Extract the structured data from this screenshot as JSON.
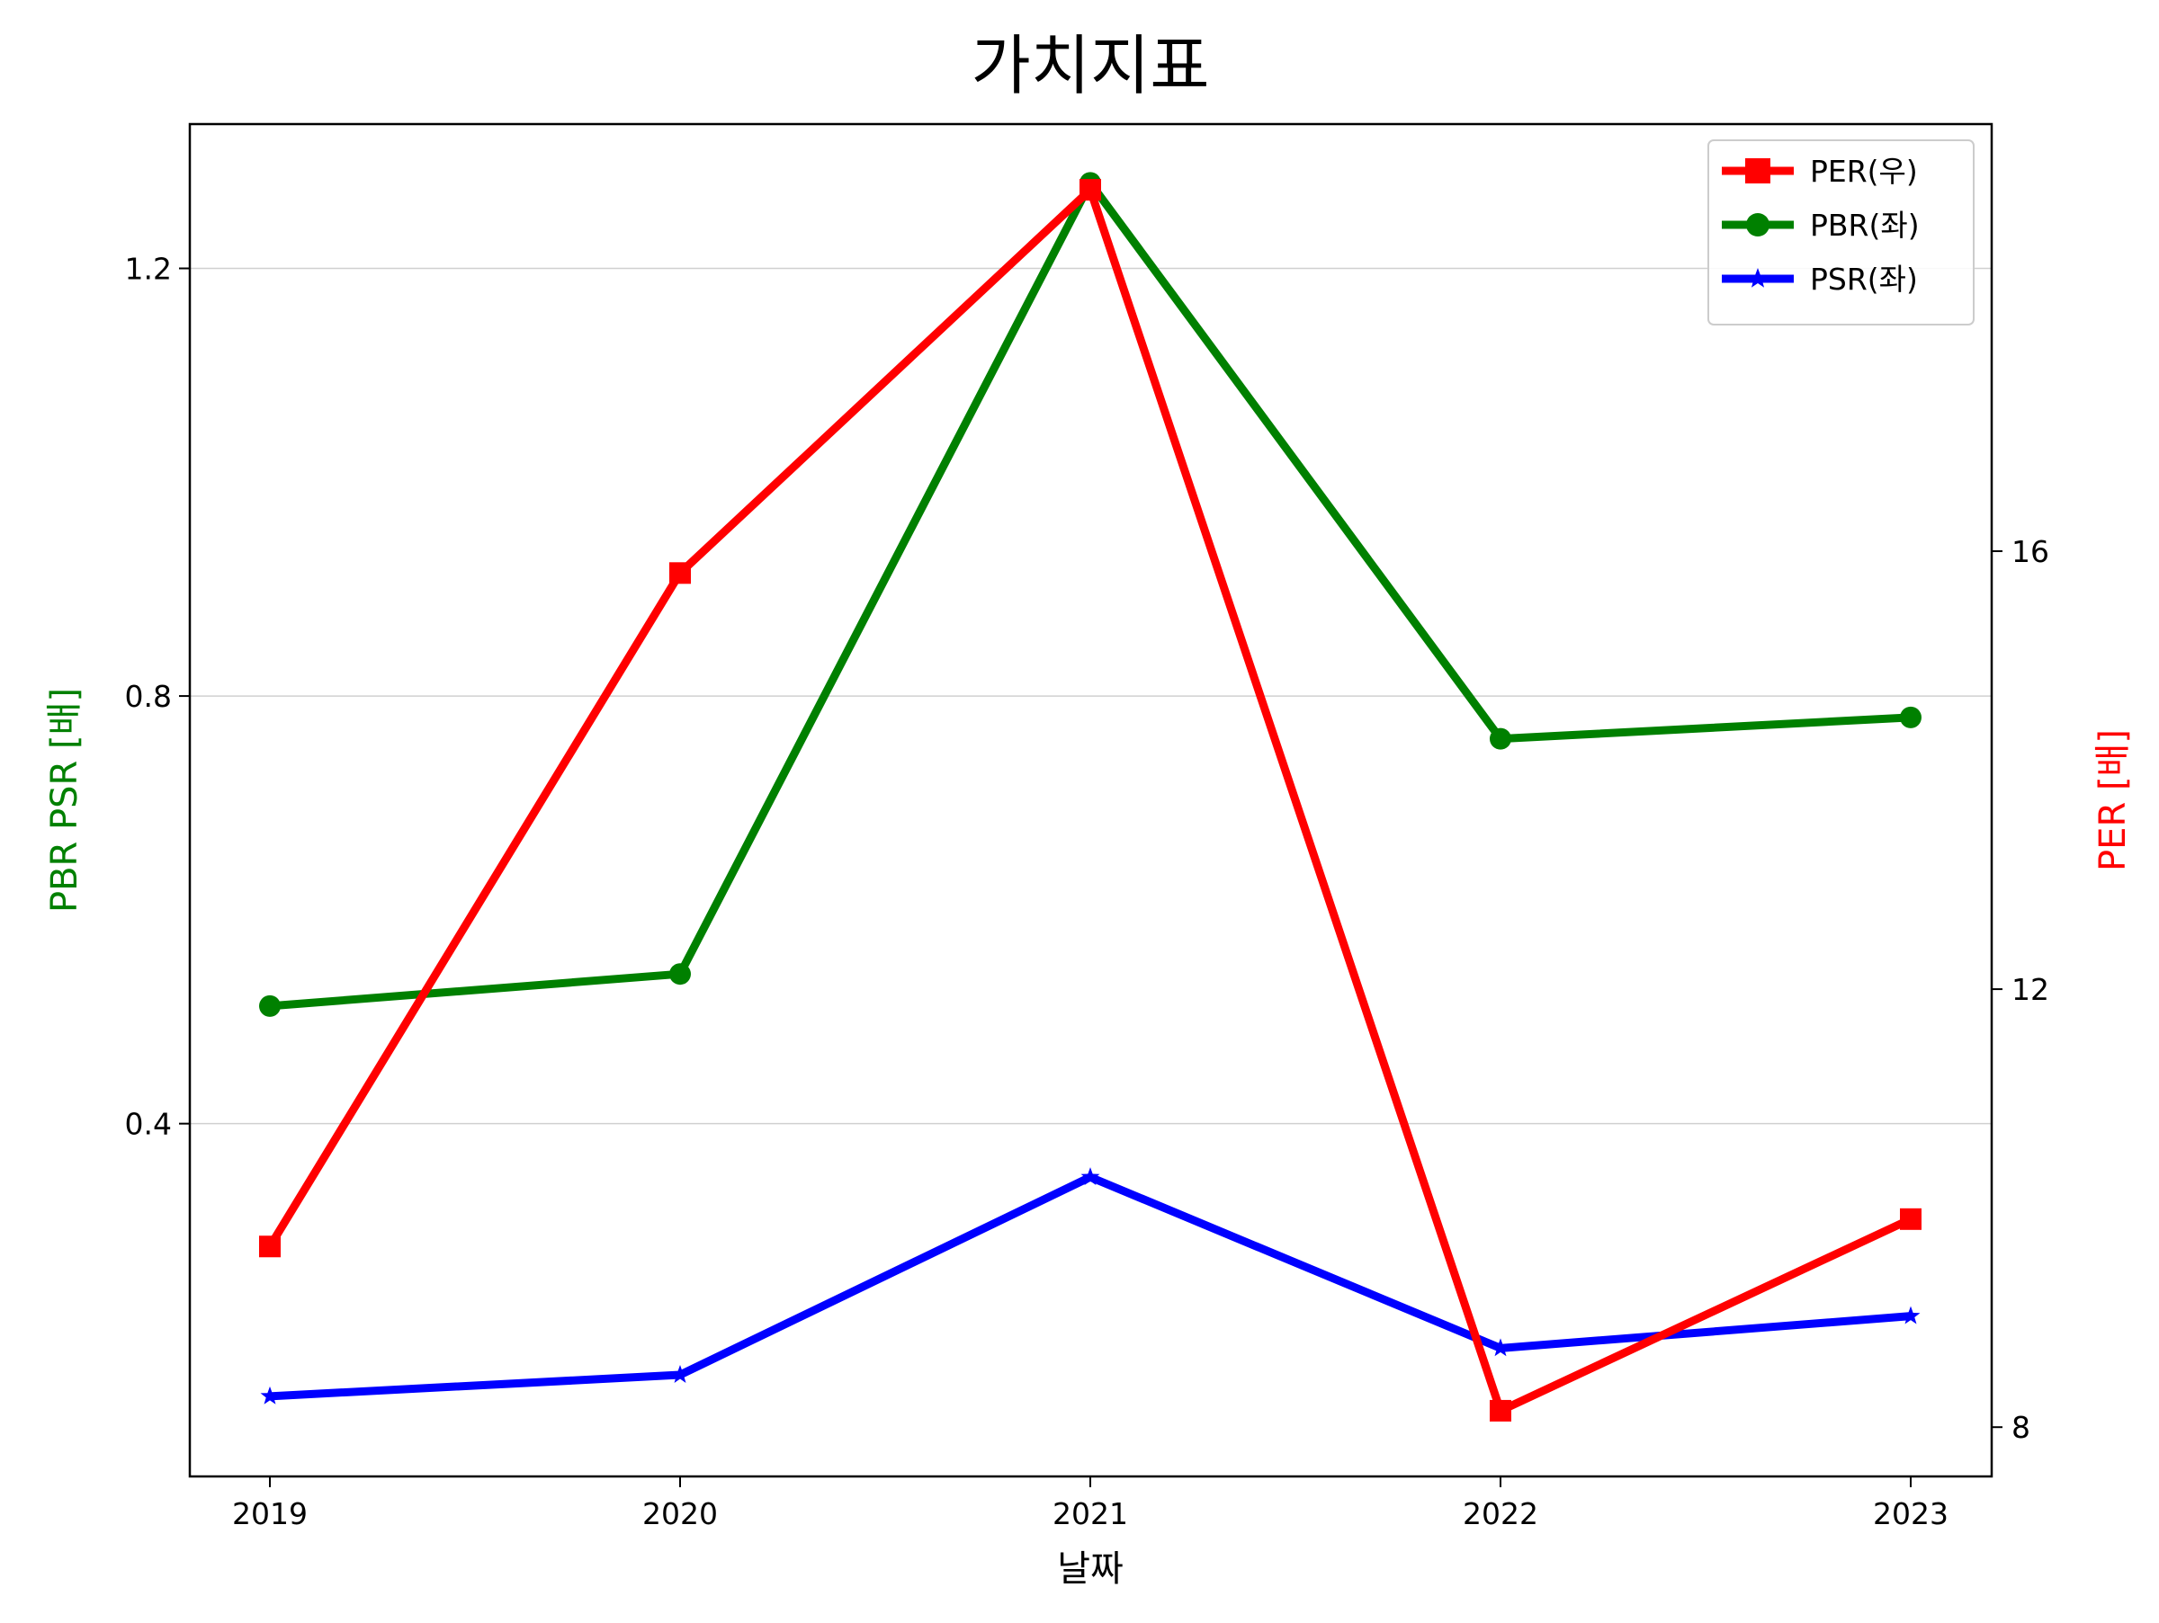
{
  "chart_data": {
    "type": "line",
    "title": "가치지표",
    "xlabel": "날짜",
    "ylabel_left": "PBR PSR [배]",
    "ylabel_right": "PER [배]",
    "categories": [
      "2019",
      "2020",
      "2021",
      "2022",
      "2023"
    ],
    "ylim_left": [
      0.07,
      1.335
    ],
    "ylim_right": [
      7.55,
      19.9
    ],
    "yticks_left": [
      "0.4",
      "0.8",
      "1.2"
    ],
    "yticks_right": [
      "8",
      "12",
      "16"
    ],
    "grid": "horizontal (left axis)",
    "legend_position": "top-right",
    "series": [
      {
        "name": "PER(우)",
        "axis": "right",
        "color": "#ff0000",
        "marker": "square",
        "values": [
          9.65,
          15.8,
          19.3,
          8.15,
          9.9
        ]
      },
      {
        "name": "PBR(좌)",
        "axis": "left",
        "color": "#008000",
        "marker": "circle",
        "values": [
          0.51,
          0.54,
          1.28,
          0.76,
          0.78
        ]
      },
      {
        "name": "PSR(좌)",
        "axis": "left",
        "color": "#0000ff",
        "marker": "star",
        "values": [
          0.145,
          0.165,
          0.35,
          0.19,
          0.22
        ]
      }
    ],
    "colors": {
      "ylabel_left": "#008000",
      "ylabel_right": "#ff0000",
      "grid": "#d0d0d0"
    }
  }
}
